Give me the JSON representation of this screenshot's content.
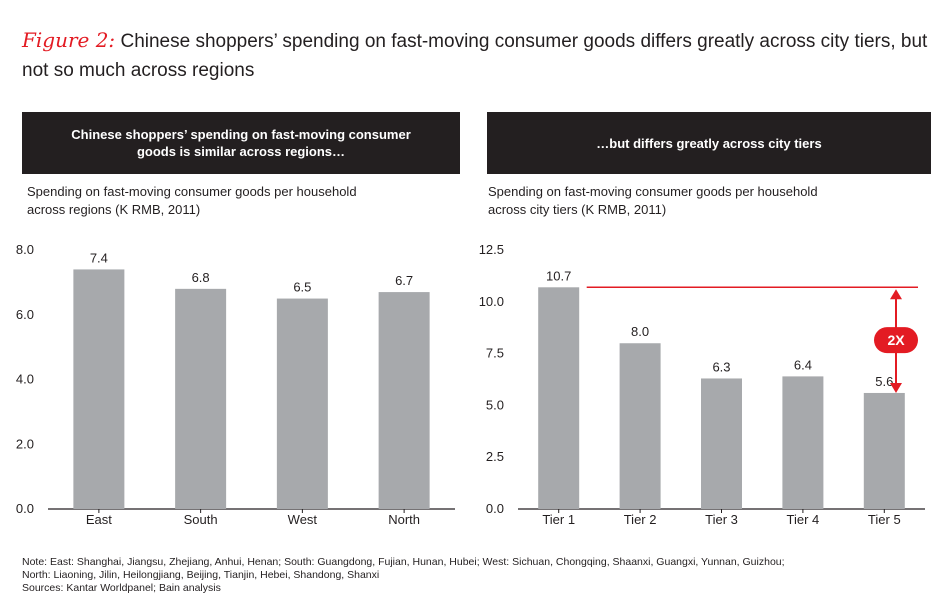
{
  "figure": {
    "label": "Figure 2:",
    "title": "Chinese shoppers’ spending on fast-moving consumer goods differs greatly across city tiers, but not so much across regions"
  },
  "chart_data": [
    {
      "type": "bar",
      "header": "Chinese shoppers’ spending on fast-moving consumer goods is similar across regions…",
      "ylabel": "Spending on fast-moving consumer goods per household across regions (K RMB, 2011)",
      "categories": [
        "East",
        "South",
        "West",
        "North"
      ],
      "values": [
        7.4,
        6.8,
        6.5,
        6.7
      ],
      "value_labels": [
        "7.4",
        "6.8",
        "6.5",
        "6.7"
      ],
      "ylim": [
        0,
        8
      ],
      "yticks": [
        "0.0",
        "2.0",
        "4.0",
        "6.0",
        "8.0"
      ],
      "ytick_values": [
        0,
        2,
        4,
        6,
        8
      ],
      "bar_color": "#a7a9ac"
    },
    {
      "type": "bar",
      "header": "…but differs greatly across city tiers",
      "ylabel": "Spending on fast-moving consumer goods per household across city tiers (K RMB, 2011)",
      "categories": [
        "Tier 1",
        "Tier 2",
        "Tier 3",
        "Tier 4",
        "Tier 5"
      ],
      "values": [
        10.7,
        8.0,
        6.3,
        6.4,
        5.6
      ],
      "value_labels": [
        "10.7",
        "8.0",
        "6.3",
        "6.4",
        "5.6"
      ],
      "ylim": [
        0,
        12.5
      ],
      "yticks": [
        "0.0",
        "2.5",
        "5.0",
        "7.5",
        "10.0",
        "12.5"
      ],
      "ytick_values": [
        0,
        2.5,
        5,
        7.5,
        10,
        12.5
      ],
      "bar_color": "#a7a9ac",
      "annotation": {
        "label": "2X",
        "color": "#e31b23",
        "from_value": 5.6,
        "to_value": 10.7
      }
    }
  ],
  "notes": [
    "Note: East: Shanghai, Jiangsu, Zhejiang, Anhui, Henan; South: Guangdong, Fujian, Hunan, Hubei; West: Sichuan, Chongqing, Shaanxi, Guangxi, Yunnan, Guizhou;",
    "North: Liaoning, Jilin, Heilongjiang, Beijing, Tianjin, Hebei, Shandong, Shanxi",
    "Sources: Kantar Worldpanel; Bain analysis"
  ]
}
